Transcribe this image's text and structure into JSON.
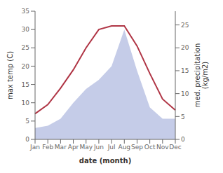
{
  "chart_data": {
    "type": "line",
    "xlabel": "date (month)",
    "ylabel": "max temp (C)",
    "y2label": "med. precipitation\n(kg/m2)",
    "categories": [
      "Jan",
      "Feb",
      "Mar",
      "Apr",
      "May",
      "Jun",
      "Jul",
      "Aug",
      "Sep",
      "Oct",
      "Nov",
      "Dec"
    ],
    "series": [
      {
        "type": "area",
        "axis": "y2",
        "color": "#c5cce8",
        "values": [
          2.5,
          3,
          4.5,
          8,
          11,
          13,
          16,
          24,
          15,
          7,
          4.5,
          4.5
        ]
      },
      {
        "type": "line",
        "color": "#b03545",
        "values": [
          7,
          9.5,
          14,
          19,
          25,
          30,
          31,
          31,
          25.5,
          18,
          11,
          8
        ]
      }
    ],
    "ylim": [
      0,
      35
    ],
    "yticks": [
      0,
      5,
      10,
      15,
      20,
      25,
      30,
      35
    ],
    "y2lim": [
      0,
      28
    ],
    "y2ticks": [
      0,
      5,
      10,
      15,
      20,
      25
    ],
    "grid": false
  }
}
